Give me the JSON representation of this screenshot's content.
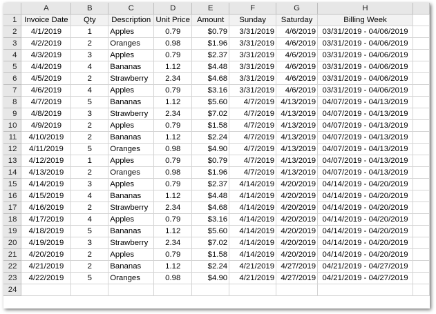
{
  "columns": [
    "A",
    "B",
    "C",
    "D",
    "E",
    "F",
    "G",
    "H"
  ],
  "headers": [
    "Invoice Date",
    "Qty",
    "Description",
    "Unit Price",
    "Amount",
    "Sunday",
    "Saturday",
    "Billing Week"
  ],
  "rows": [
    [
      "4/1/2019",
      "1",
      "Apples",
      "0.79",
      "$0.79",
      "3/31/2019",
      "4/6/2019",
      "03/31/2019 - 04/06/2019"
    ],
    [
      "4/2/2019",
      "2",
      "Oranges",
      "0.98",
      "$1.96",
      "3/31/2019",
      "4/6/2019",
      "03/31/2019 - 04/06/2019"
    ],
    [
      "4/3/2019",
      "3",
      "Apples",
      "0.79",
      "$2.37",
      "3/31/2019",
      "4/6/2019",
      "03/31/2019 - 04/06/2019"
    ],
    [
      "4/4/2019",
      "4",
      "Bananas",
      "1.12",
      "$4.48",
      "3/31/2019",
      "4/6/2019",
      "03/31/2019 - 04/06/2019"
    ],
    [
      "4/5/2019",
      "2",
      "Strawberry",
      "2.34",
      "$4.68",
      "3/31/2019",
      "4/6/2019",
      "03/31/2019 - 04/06/2019"
    ],
    [
      "4/6/2019",
      "4",
      "Apples",
      "0.79",
      "$3.16",
      "3/31/2019",
      "4/6/2019",
      "03/31/2019 - 04/06/2019"
    ],
    [
      "4/7/2019",
      "5",
      "Bananas",
      "1.12",
      "$5.60",
      "4/7/2019",
      "4/13/2019",
      "04/07/2019 - 04/13/2019"
    ],
    [
      "4/8/2019",
      "3",
      "Strawberry",
      "2.34",
      "$7.02",
      "4/7/2019",
      "4/13/2019",
      "04/07/2019 - 04/13/2019"
    ],
    [
      "4/9/2019",
      "2",
      "Apples",
      "0.79",
      "$1.58",
      "4/7/2019",
      "4/13/2019",
      "04/07/2019 - 04/13/2019"
    ],
    [
      "4/10/2019",
      "2",
      "Bananas",
      "1.12",
      "$2.24",
      "4/7/2019",
      "4/13/2019",
      "04/07/2019 - 04/13/2019"
    ],
    [
      "4/11/2019",
      "5",
      "Oranges",
      "0.98",
      "$4.90",
      "4/7/2019",
      "4/13/2019",
      "04/07/2019 - 04/13/2019"
    ],
    [
      "4/12/2019",
      "1",
      "Apples",
      "0.79",
      "$0.79",
      "4/7/2019",
      "4/13/2019",
      "04/07/2019 - 04/13/2019"
    ],
    [
      "4/13/2019",
      "2",
      "Oranges",
      "0.98",
      "$1.96",
      "4/7/2019",
      "4/13/2019",
      "04/07/2019 - 04/13/2019"
    ],
    [
      "4/14/2019",
      "3",
      "Apples",
      "0.79",
      "$2.37",
      "4/14/2019",
      "4/20/2019",
      "04/14/2019 - 04/20/2019"
    ],
    [
      "4/15/2019",
      "4",
      "Bananas",
      "1.12",
      "$4.48",
      "4/14/2019",
      "4/20/2019",
      "04/14/2019 - 04/20/2019"
    ],
    [
      "4/16/2019",
      "2",
      "Strawberry",
      "2.34",
      "$4.68",
      "4/14/2019",
      "4/20/2019",
      "04/14/2019 - 04/20/2019"
    ],
    [
      "4/17/2019",
      "4",
      "Apples",
      "0.79",
      "$3.16",
      "4/14/2019",
      "4/20/2019",
      "04/14/2019 - 04/20/2019"
    ],
    [
      "4/18/2019",
      "5",
      "Bananas",
      "1.12",
      "$5.60",
      "4/14/2019",
      "4/20/2019",
      "04/14/2019 - 04/20/2019"
    ],
    [
      "4/19/2019",
      "3",
      "Strawberry",
      "2.34",
      "$7.02",
      "4/14/2019",
      "4/20/2019",
      "04/14/2019 - 04/20/2019"
    ],
    [
      "4/20/2019",
      "2",
      "Apples",
      "0.79",
      "$1.58",
      "4/14/2019",
      "4/20/2019",
      "04/14/2019 - 04/20/2019"
    ],
    [
      "4/21/2019",
      "2",
      "Bananas",
      "1.12",
      "$2.24",
      "4/21/2019",
      "4/27/2019",
      "04/21/2019 - 04/27/2019"
    ],
    [
      "4/22/2019",
      "5",
      "Oranges",
      "0.98",
      "$4.90",
      "4/21/2019",
      "4/27/2019",
      "04/21/2019 - 04/27/2019"
    ]
  ],
  "row_numbers": [
    "1",
    "2",
    "3",
    "4",
    "5",
    "6",
    "7",
    "8",
    "9",
    "10",
    "11",
    "12",
    "13",
    "14",
    "15",
    "16",
    "17",
    "18",
    "19",
    "20",
    "21",
    "22",
    "23",
    "24"
  ]
}
